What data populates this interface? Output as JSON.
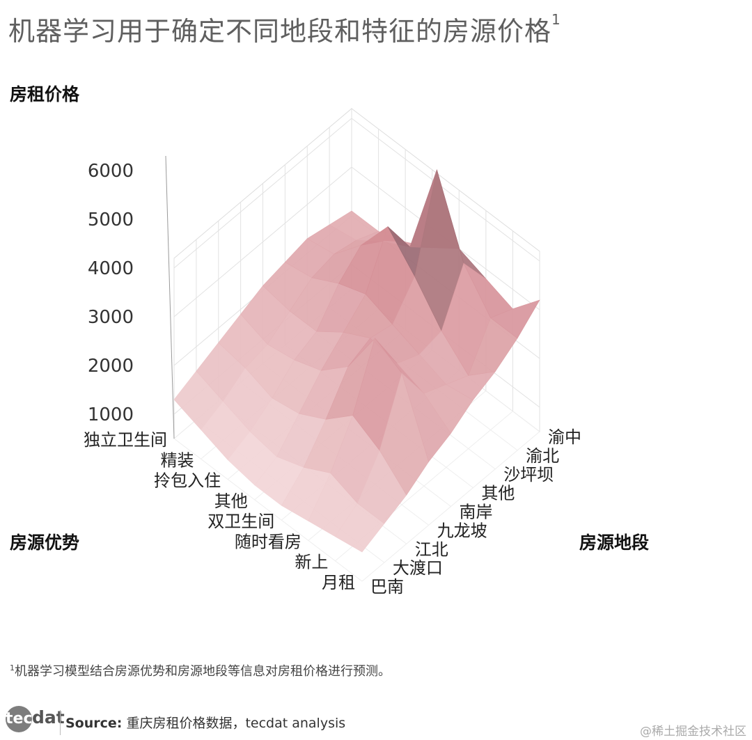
{
  "title": "机器学习用于确定不同地段和特征的房源价格",
  "title_footnote_mark": "1",
  "footnote": {
    "mark": "1",
    "text": "机器学习模型结合房源优势和房源地段等信息对房租价格进行预测。"
  },
  "source": {
    "label": "Source:",
    "text": "重庆房租价格数据，tecdat analysis"
  },
  "logo": {
    "left": "tec",
    "right": "dat"
  },
  "watermark": "@稀土掘金技术社区",
  "chart_data": {
    "type": "surface3d",
    "zlabel": "房租价格",
    "xlabel": "房源优势",
    "ylabel": "房源地段",
    "z_ticks": [
      1000,
      2000,
      3000,
      4000,
      5000,
      6000
    ],
    "x_categories": [
      "月租",
      "新上",
      "随时看房",
      "双卫生间",
      "其他",
      "拎包入住",
      "精装",
      "独立卫生间"
    ],
    "y_categories": [
      "巴南",
      "大渡口",
      "江北",
      "九龙坡",
      "南岸",
      "其他",
      "沙坪坝",
      "渝北",
      "渝中"
    ],
    "z": [
      [
        1100,
        1300,
        1500,
        1800,
        2000,
        2300,
        2500,
        2800,
        3200
      ],
      [
        1000,
        1300,
        2000,
        3200,
        2400,
        2200,
        2000,
        2800,
        2600
      ],
      [
        900,
        1500,
        2300,
        3500,
        2600,
        2400,
        2500,
        3500,
        2800
      ],
      [
        800,
        1200,
        1800,
        2500,
        2700,
        2600,
        3200,
        5000,
        3000
      ],
      [
        800,
        1000,
        1500,
        2000,
        2400,
        2800,
        3800,
        3000,
        2600
      ],
      [
        900,
        1100,
        1400,
        1800,
        2000,
        2600,
        3000,
        2700,
        2300
      ],
      [
        1100,
        1300,
        1600,
        1700,
        2000,
        2300,
        2400,
        2300,
        2100
      ],
      [
        1300,
        1500,
        1700,
        1900,
        2100,
        2200,
        2300,
        2200,
        2100
      ]
    ],
    "colors": {
      "low": "#f4dadb",
      "mid": "#d58f96",
      "high": "#2b2631"
    },
    "grid": true
  }
}
